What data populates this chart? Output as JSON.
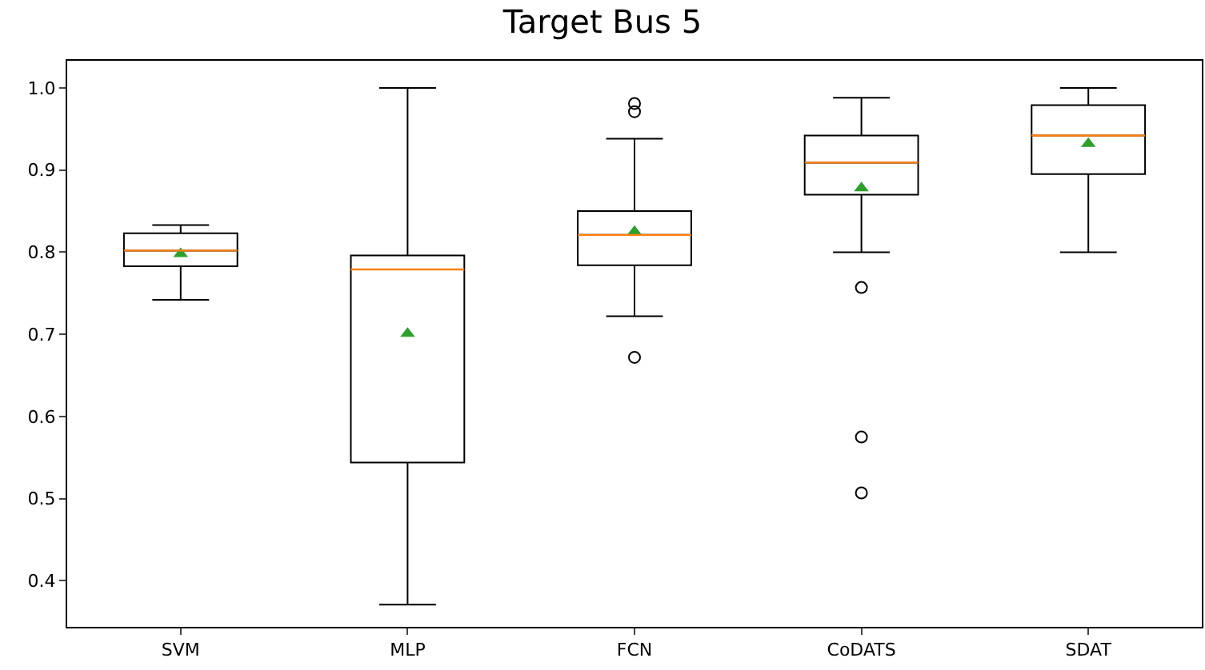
{
  "chart_data": {
    "type": "box",
    "title": "Target Bus 5",
    "categories": [
      "SVM",
      "MLP",
      "FCN",
      "CoDATS",
      "SDAT"
    ],
    "boxes": [
      {
        "low": 0.742,
        "q1": 0.783,
        "median": 0.802,
        "q3": 0.823,
        "high": 0.833,
        "mean": 0.798
      },
      {
        "low": 0.371,
        "q1": 0.544,
        "median": 0.779,
        "q3": 0.796,
        "high": 1.0,
        "mean": 0.701
      },
      {
        "low": 0.722,
        "q1": 0.784,
        "median": 0.821,
        "q3": 0.85,
        "high": 0.938,
        "mean": 0.825,
        "outliers": [
          0.981,
          0.971,
          0.672
        ]
      },
      {
        "low": 0.8,
        "q1": 0.87,
        "median": 0.909,
        "q3": 0.942,
        "high": 0.988,
        "mean": 0.878,
        "outliers": [
          0.757,
          0.575,
          0.507
        ]
      },
      {
        "low": 0.8,
        "q1": 0.895,
        "median": 0.942,
        "q3": 0.979,
        "high": 1.0,
        "mean": 0.932
      }
    ],
    "ylim": [
      0.344,
      1.033
    ],
    "yticks": [
      0.4,
      0.5,
      0.6,
      0.7,
      0.8,
      0.9,
      {
        "value": 1.0,
        "label": "1.0"
      }
    ]
  }
}
